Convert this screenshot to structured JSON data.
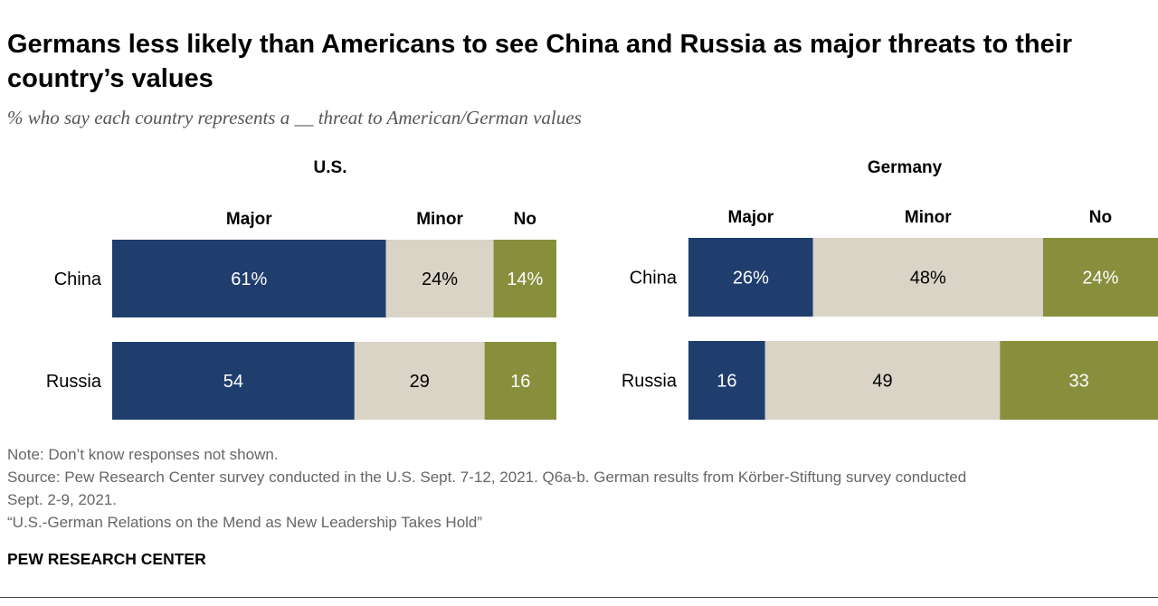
{
  "title": "Germans less likely than Americans to see China and Russia as major threats to their country’s values",
  "subtitle": "% who say each country represents a __ threat to American/German values",
  "colors": {
    "major": "#1f3e6e",
    "minor": "#d9d4c6",
    "no": "#878f3c",
    "text_on_dark": "#ffffff",
    "text_on_light": "#000000"
  },
  "chart_data": [
    {
      "type": "bar",
      "orientation": "horizontal-stacked",
      "title": "U.S.",
      "categories": [
        "China",
        "Russia"
      ],
      "series": [
        {
          "name": "Major",
          "values": [
            61,
            54
          ],
          "labels": [
            "61%",
            "54"
          ]
        },
        {
          "name": "Minor",
          "values": [
            24,
            29
          ],
          "labels": [
            "24%",
            "29"
          ]
        },
        {
          "name": "No",
          "values": [
            14,
            16
          ],
          "labels": [
            "14%",
            "16"
          ]
        }
      ]
    },
    {
      "type": "bar",
      "orientation": "horizontal-stacked",
      "title": "Germany",
      "categories": [
        "China",
        "Russia"
      ],
      "series": [
        {
          "name": "Major",
          "values": [
            26,
            16
          ],
          "labels": [
            "26%",
            "16"
          ]
        },
        {
          "name": "Minor",
          "values": [
            48,
            49
          ],
          "labels": [
            "48%",
            "49"
          ]
        },
        {
          "name": "No",
          "values": [
            24,
            33
          ],
          "labels": [
            "24%",
            "33"
          ]
        }
      ]
    }
  ],
  "notes": {
    "note": "Note: Don’t know responses not shown.",
    "source_line1": "Source: Pew Research Center survey conducted in the U.S. Sept. 7-12, 2021. Q6a-b. German results from Körber-Stiftung survey conducted",
    "source_line2": "Sept. 2-9, 2021.",
    "report": "“U.S.-German Relations on the Mend as New Leadership Takes Hold”"
  },
  "brand": "PEW RESEARCH CENTER"
}
